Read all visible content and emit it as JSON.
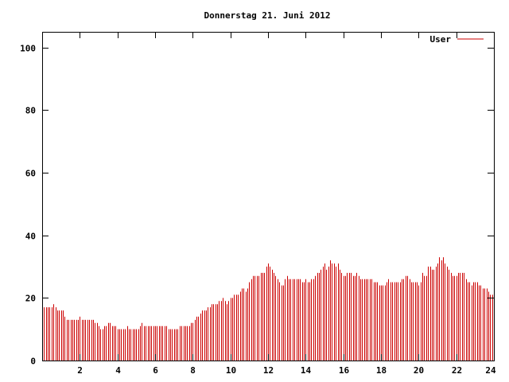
{
  "chart_data": {
    "type": "bar",
    "title": "Donnerstag 21. Juni 2012",
    "xlabel": "",
    "ylabel": "",
    "xlim": [
      0,
      24
    ],
    "ylim": [
      0,
      105
    ],
    "x_ticks": [
      2,
      4,
      6,
      8,
      10,
      12,
      14,
      16,
      18,
      20,
      22,
      24
    ],
    "y_ticks": [
      0,
      20,
      40,
      60,
      80,
      100
    ],
    "grid": false,
    "legend_position": "top-right",
    "series": [
      {
        "name": "User",
        "color": "#cc0000",
        "sample_interval_hours": 0.1,
        "values": [
          17,
          17,
          17,
          17,
          17,
          17,
          18,
          17,
          16,
          16,
          16,
          16,
          14,
          13,
          13,
          13,
          13,
          13,
          13,
          13,
          14,
          13,
          13,
          13,
          13,
          13,
          13,
          13,
          12,
          12,
          11,
          10,
          10,
          11,
          11,
          12,
          12,
          11,
          11,
          11,
          10,
          10,
          10,
          10,
          10,
          11,
          10,
          10,
          10,
          10,
          10,
          10,
          11,
          12,
          11,
          11,
          11,
          11,
          11,
          11,
          11,
          11,
          11,
          11,
          11,
          11,
          11,
          10,
          10,
          10,
          10,
          10,
          10,
          11,
          11,
          11,
          11,
          11,
          11,
          12,
          12,
          13,
          14,
          14,
          15,
          16,
          16,
          16,
          17,
          17,
          18,
          18,
          18,
          18,
          19,
          19,
          20,
          19,
          18,
          19,
          20,
          20,
          21,
          21,
          21,
          22,
          23,
          23,
          22,
          23,
          25,
          26,
          27,
          27,
          27,
          27,
          28,
          28,
          28,
          30,
          31,
          30,
          29,
          28,
          27,
          26,
          25,
          24,
          24,
          26,
          27,
          26,
          26,
          26,
          26,
          26,
          26,
          26,
          25,
          25,
          26,
          25,
          25,
          26,
          26,
          27,
          28,
          28,
          29,
          30,
          31,
          29,
          30,
          32,
          31,
          31,
          30,
          31,
          29,
          28,
          27,
          27,
          28,
          28,
          28,
          27,
          27,
          28,
          27,
          26,
          26,
          26,
          26,
          26,
          26,
          26,
          25,
          25,
          25,
          24,
          24,
          24,
          24,
          25,
          26,
          25,
          25,
          25,
          25,
          25,
          25,
          26,
          26,
          27,
          27,
          26,
          25,
          25,
          25,
          25,
          24,
          25,
          28,
          27,
          27,
          30,
          30,
          29,
          29,
          30,
          31,
          33,
          32,
          33,
          31,
          30,
          29,
          28,
          27,
          27,
          27,
          28,
          28,
          28,
          28,
          26,
          25,
          25,
          24,
          25,
          25,
          25,
          24,
          24,
          23,
          23,
          23,
          22,
          21,
          21,
          20
        ]
      }
    ]
  }
}
